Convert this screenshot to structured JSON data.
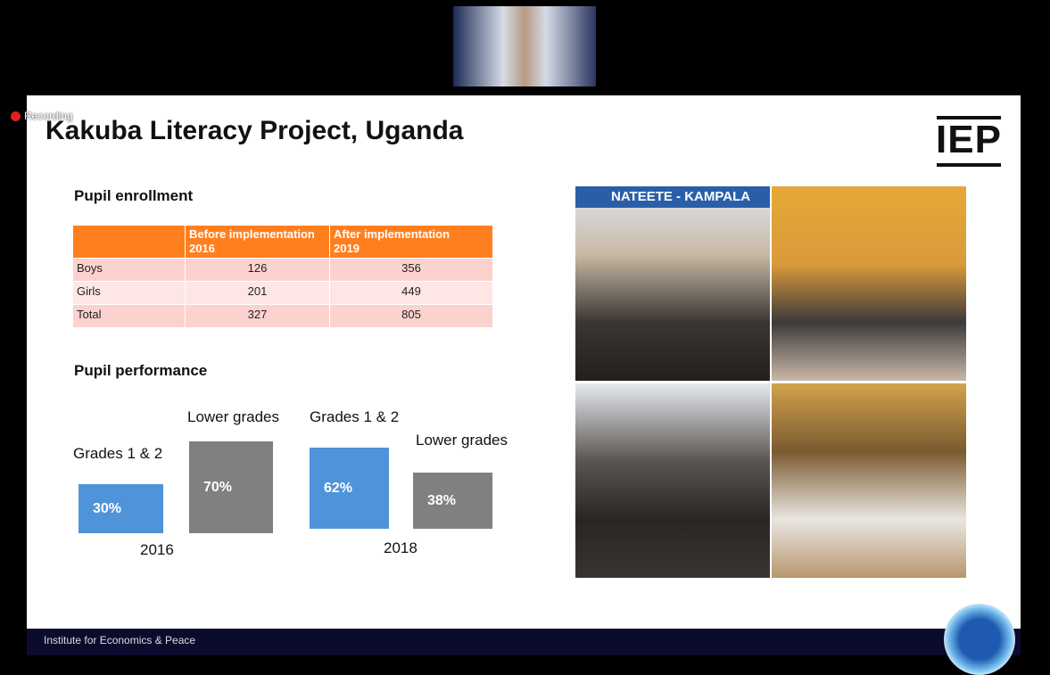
{
  "recording": "Recording",
  "slide": {
    "title": "Kakuba Literacy Project, Uganda",
    "logo": "IEP",
    "enrollment": {
      "heading": "Pupil enrollment",
      "table": {
        "header": [
          "Before implementation\n2016",
          "After implementation\n2019"
        ],
        "rows": [
          [
            "Boys",
            126,
            356
          ],
          [
            "Girls",
            201,
            449
          ],
          [
            "Total",
            327,
            805
          ]
        ]
      }
    },
    "performance": {
      "heading": "Pupil performance",
      "groups": [
        {
          "year": "2016",
          "bars": [
            {
              "label": "Grades 1 & 2",
              "value": "30%"
            },
            {
              "label": "Lower grades",
              "value": "70%"
            }
          ]
        },
        {
          "year": "2018",
          "bars": [
            {
              "label": "Grades 1 & 2",
              "value": "62%"
            },
            {
              "label": "Lower grades",
              "value": "38%"
            }
          ]
        }
      ]
    },
    "photo_banner": "NATEETE - KAMPALA",
    "footer": "Institute for Economics & Peace"
  }
}
